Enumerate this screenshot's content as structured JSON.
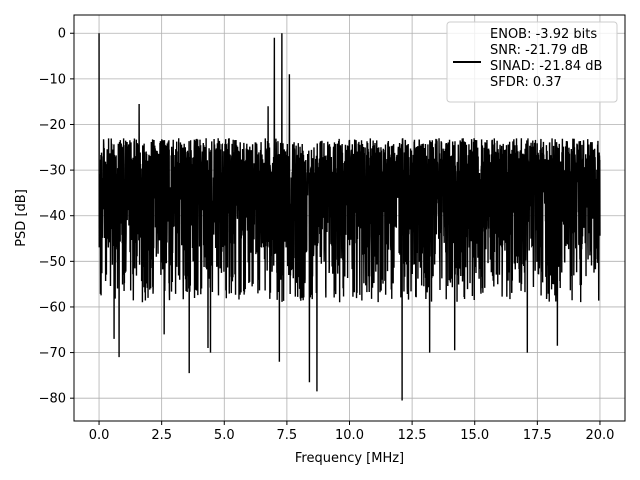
{
  "chart_data": {
    "type": "line",
    "title": "",
    "xlabel": "Frequency [MHz]",
    "ylabel": "PSD [dB]",
    "xlim": [
      -1,
      21
    ],
    "ylim": [
      -85,
      4
    ],
    "x_ticks": [
      0.0,
      2.5,
      5.0,
      7.5,
      10.0,
      12.5,
      15.0,
      17.5,
      20.0
    ],
    "x_tick_labels": [
      "0.0",
      "2.5",
      "5.0",
      "7.5",
      "10.0",
      "12.5",
      "15.0",
      "17.5",
      "20.0"
    ],
    "y_ticks": [
      0,
      -10,
      -20,
      -30,
      -40,
      -50,
      -60,
      -70,
      -80
    ],
    "y_tick_labels": [
      "0",
      "−10",
      "−20",
      "−30",
      "−40",
      "−50",
      "−60",
      "−70",
      "−80"
    ],
    "grid": true,
    "line_color": "#000000",
    "noise_band": {
      "x_range": [
        0,
        20
      ],
      "upper_envelope_db": -21,
      "lower_typical_db": -55
    },
    "peaks": [
      {
        "x": 0.0,
        "y": 0
      },
      {
        "x": 1.6,
        "y": -15.5
      },
      {
        "x": 7.0,
        "y": -1
      },
      {
        "x": 7.3,
        "y": 0
      },
      {
        "x": 7.6,
        "y": -9
      },
      {
        "x": 6.75,
        "y": -16
      }
    ],
    "dips": [
      {
        "x": 0.8,
        "y": -71
      },
      {
        "x": 2.6,
        "y": -66
      },
      {
        "x": 3.6,
        "y": -74.5
      },
      {
        "x": 4.35,
        "y": -69
      },
      {
        "x": 4.45,
        "y": -70
      },
      {
        "x": 7.2,
        "y": -72
      },
      {
        "x": 8.4,
        "y": -76.5
      },
      {
        "x": 8.7,
        "y": -78.5
      },
      {
        "x": 12.1,
        "y": -80.5
      },
      {
        "x": 13.2,
        "y": -70
      },
      {
        "x": 14.2,
        "y": -69.5
      },
      {
        "x": 17.1,
        "y": -70
      },
      {
        "x": 18.3,
        "y": -68.5
      },
      {
        "x": 0.6,
        "y": -67
      }
    ],
    "legend": {
      "placement": "top-right",
      "entries": [
        "ENOB: -3.92 bits",
        "SNR: -21.79 dB",
        "SINAD: -21.84 dB",
        "SFDR: 0.37"
      ]
    }
  }
}
